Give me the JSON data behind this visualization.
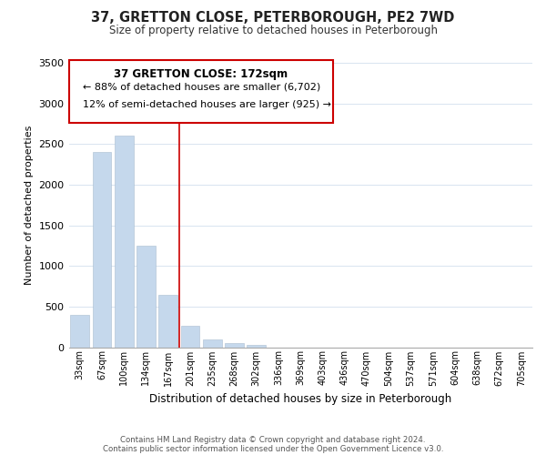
{
  "title": "37, GRETTON CLOSE, PETERBOROUGH, PE2 7WD",
  "subtitle": "Size of property relative to detached houses in Peterborough",
  "xlabel": "Distribution of detached houses by size in Peterborough",
  "ylabel": "Number of detached properties",
  "bar_labels": [
    "33sqm",
    "67sqm",
    "100sqm",
    "134sqm",
    "167sqm",
    "201sqm",
    "235sqm",
    "268sqm",
    "302sqm",
    "336sqm",
    "369sqm",
    "403sqm",
    "436sqm",
    "470sqm",
    "504sqm",
    "537sqm",
    "571sqm",
    "604sqm",
    "638sqm",
    "672sqm",
    "705sqm"
  ],
  "bar_values": [
    400,
    2400,
    2600,
    1250,
    640,
    260,
    100,
    55,
    30,
    0,
    0,
    0,
    0,
    0,
    0,
    0,
    0,
    0,
    0,
    0,
    0
  ],
  "bar_color": "#c5d8ec",
  "vline_color": "#cc0000",
  "vline_pos": 4.5,
  "ylim": [
    0,
    3500
  ],
  "yticks": [
    0,
    500,
    1000,
    1500,
    2000,
    2500,
    3000,
    3500
  ],
  "annotation_title": "37 GRETTON CLOSE: 172sqm",
  "annotation_line1": "← 88% of detached houses are smaller (6,702)",
  "annotation_line2": "12% of semi-detached houses are larger (925) →",
  "footer1": "Contains HM Land Registry data © Crown copyright and database right 2024.",
  "footer2": "Contains public sector information licensed under the Open Government Licence v3.0.",
  "background_color": "#ffffff",
  "grid_color": "#d8e4f0"
}
